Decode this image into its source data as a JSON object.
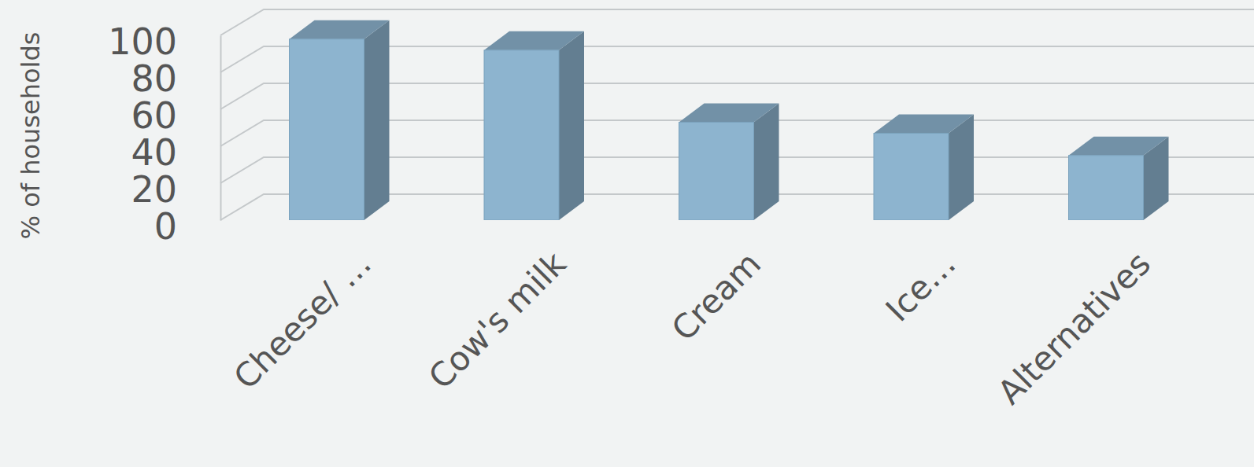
{
  "chart_data": {
    "type": "bar",
    "y_label": "% of households",
    "categories": [
      "Cheese/ …",
      "Cow's milk",
      "Cream",
      "Ice…",
      "Alternatives"
    ],
    "values": [
      98,
      92,
      53,
      47,
      35
    ],
    "color": "#8db4cf",
    "ylim": [
      0,
      100
    ],
    "yticks": [
      0,
      20,
      40,
      60,
      80,
      100
    ],
    "grid": true
  }
}
